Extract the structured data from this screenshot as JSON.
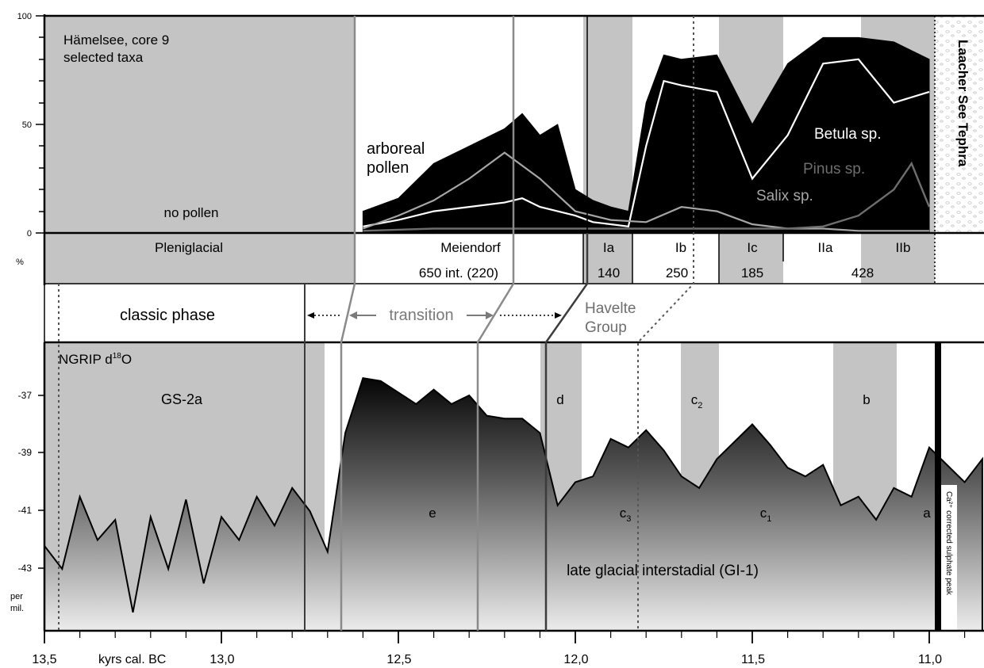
{
  "top_panel": {
    "site_title": "Hämelsee, core 9",
    "site_subtitle": "selected taxa",
    "no_pollen": "no pollen",
    "arboreal_line1": "arboreal",
    "arboreal_line2": "pollen",
    "betula": "Betula sp.",
    "pinus": "Pinus sp.",
    "salix": "Salix sp.",
    "tephra": "Laacher See Tephra",
    "y_ticks": [
      "100",
      "50",
      "0"
    ],
    "unit": "%"
  },
  "zones": {
    "pleniglacial": "Pleniglacial",
    "meiendorf": "Meiendorf",
    "meiendorf_count": "650 int. (220)",
    "ia": "Ia",
    "ia_count": "140",
    "ib": "Ib",
    "ib_count": "250",
    "ic": "Ic",
    "ic_count": "185",
    "iia": "IIa",
    "iib": "IIb",
    "ii_count": "428"
  },
  "middle": {
    "classic_phase": "classic phase",
    "transition": "transition",
    "havelte_line1": "Havelte",
    "havelte_line2": "Group"
  },
  "bottom_panel": {
    "ngrip": "NGRIP d",
    "ngrip_sup": "18",
    "ngrip_tail": "O",
    "gs2a": "GS-2a",
    "d": "d",
    "c2": "c",
    "c2_sub": "2",
    "b": "b",
    "e": "e",
    "c3": "c",
    "c3_sub": "3",
    "c1": "c",
    "c1_sub": "1",
    "a": "a",
    "gi1": "late glacial interstadial (GI-1)",
    "sulphate": "Ca²⁺ corrected sulphate peak",
    "unit_line1": "per",
    "unit_line2": "mil.",
    "y_ticks": [
      "-37",
      "-39",
      "-41",
      "-43"
    ]
  },
  "x_axis": {
    "ticks": [
      "13,5",
      "13,0",
      "12,5",
      "12,0",
      "11,5",
      "11,0"
    ],
    "label": "kyrs cal. BC"
  },
  "chart_data": [
    {
      "type": "area",
      "title": "Hämelsee, core 9 selected taxa",
      "ylabel": "%",
      "ylim": [
        0,
        100
      ],
      "x_ticks_kyr": [
        13.5,
        13.0,
        12.5,
        12.0,
        11.5,
        11.0
      ],
      "series": [
        {
          "name": "arboreal pollen",
          "x": [
            12.6,
            12.5,
            12.4,
            12.3,
            12.2,
            12.15,
            12.1,
            12.05,
            12.0,
            11.95,
            11.9,
            11.85,
            11.8,
            11.75,
            11.7,
            11.6,
            11.5,
            11.4,
            11.3,
            11.2,
            11.1,
            11.0
          ],
          "values": [
            10,
            16,
            32,
            40,
            48,
            55,
            45,
            50,
            20,
            15,
            12,
            10,
            60,
            82,
            80,
            82,
            50,
            78,
            90,
            90,
            88,
            80
          ]
        },
        {
          "name": "Betula sp.",
          "x": [
            12.6,
            12.5,
            12.4,
            12.3,
            12.2,
            12.15,
            12.1,
            12.05,
            12.0,
            11.95,
            11.9,
            11.85,
            11.8,
            11.75,
            11.7,
            11.6,
            11.5,
            11.4,
            11.3,
            11.2,
            11.1,
            11.0
          ],
          "values": [
            3,
            6,
            10,
            12,
            14,
            16,
            12,
            10,
            8,
            5,
            4,
            3,
            40,
            70,
            68,
            65,
            25,
            45,
            78,
            80,
            60,
            65
          ]
        },
        {
          "name": "Pinus sp.",
          "x": [
            12.6,
            12.4,
            12.2,
            12.0,
            11.8,
            11.6,
            11.4,
            11.3,
            11.2,
            11.1,
            11.05,
            11.0
          ],
          "values": [
            1,
            2,
            2,
            2,
            2,
            2,
            2,
            3,
            8,
            20,
            32,
            12
          ]
        },
        {
          "name": "Salix sp.",
          "x": [
            12.6,
            12.5,
            12.4,
            12.3,
            12.2,
            12.1,
            12.0,
            11.9,
            11.8,
            11.7,
            11.6,
            11.5,
            11.4,
            11.3,
            11.2,
            11.1,
            11.0
          ],
          "values": [
            2,
            8,
            15,
            25,
            37,
            25,
            10,
            6,
            5,
            12,
            10,
            4,
            2,
            2,
            1,
            1,
            1
          ]
        }
      ]
    },
    {
      "type": "area",
      "title": "NGRIP d18O",
      "ylabel": "per mil.",
      "ylim": [
        -45,
        -35
      ],
      "x_ticks_kyr": [
        13.5,
        13.0,
        12.5,
        12.0,
        11.5,
        11.0
      ],
      "series": [
        {
          "name": "NGRIP d18O",
          "x": [
            13.5,
            13.45,
            13.4,
            13.35,
            13.3,
            13.25,
            13.2,
            13.15,
            13.1,
            13.05,
            13.0,
            12.95,
            12.9,
            12.85,
            12.8,
            12.75,
            12.7,
            12.65,
            12.6,
            12.55,
            12.5,
            12.45,
            12.4,
            12.35,
            12.3,
            12.25,
            12.2,
            12.15,
            12.1,
            12.05,
            12.0,
            11.95,
            11.9,
            11.85,
            11.8,
            11.75,
            11.7,
            11.65,
            11.6,
            11.55,
            11.5,
            11.45,
            11.4,
            11.35,
            11.3,
            11.25,
            11.2,
            11.15,
            11.1,
            11.05,
            11.0,
            10.95,
            10.9,
            10.85
          ],
          "values": [
            -42.2,
            -43.0,
            -40.5,
            -42.0,
            -41.3,
            -44.5,
            -41.2,
            -43.0,
            -40.6,
            -43.5,
            -41.2,
            -42.0,
            -40.5,
            -41.5,
            -40.2,
            -41.0,
            -42.4,
            -38.3,
            -36.4,
            -36.5,
            -36.9,
            -37.3,
            -36.8,
            -37.3,
            -37.0,
            -37.7,
            -37.8,
            -37.8,
            -38.3,
            -40.8,
            -40.0,
            -39.8,
            -38.5,
            -38.8,
            -38.2,
            -38.9,
            -39.8,
            -40.2,
            -39.2,
            -38.6,
            -38.0,
            -38.7,
            -39.5,
            -39.8,
            -39.4,
            -40.8,
            -40.5,
            -41.3,
            -40.2,
            -40.5,
            -38.8,
            -39.4,
            -40.0,
            -39.2
          ]
        }
      ]
    }
  ]
}
